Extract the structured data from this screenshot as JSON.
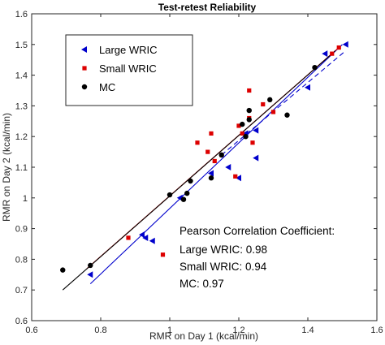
{
  "chart_data": {
    "type": "scatter",
    "title": "Test-retest Reliability",
    "xlabel": "RMR on Day 1 (kcal/min)",
    "ylabel": "RMR on Day 2 (kcal/min)",
    "xlim": [
      0.6,
      1.6
    ],
    "ylim": [
      0.6,
      1.6
    ],
    "xticks": [
      "0.6",
      "0.8",
      "1",
      "1.2",
      "1.4",
      "1.6"
    ],
    "yticks": [
      "0.6",
      "0.7",
      "0.8",
      "0.9",
      "1",
      "1.1",
      "1.2",
      "1.3",
      "1.4",
      "1.5",
      "1.6"
    ],
    "grid": false,
    "legend_position": "top-left",
    "series": [
      {
        "name": "Large WRIC",
        "color": "#0000cc",
        "marker": "triangle-left",
        "line_style": "solid",
        "fit": [
          [
            0.77,
            0.72
          ],
          [
            1.5,
            1.5
          ]
        ],
        "x": [
          0.77,
          0.92,
          0.93,
          0.95,
          1.03,
          1.12,
          1.17,
          1.2,
          1.22,
          1.25,
          1.25,
          1.4,
          1.45,
          1.51
        ],
        "y": [
          0.75,
          0.88,
          0.87,
          0.86,
          1.0,
          1.08,
          1.1,
          1.065,
          1.21,
          1.13,
          1.22,
          1.36,
          1.47,
          1.5
        ]
      },
      {
        "name": "Small WRIC",
        "color": "#dd0000",
        "marker": "square",
        "line_style": "solid",
        "fit": [
          [
            0.76,
            0.77
          ],
          [
            1.49,
            1.49
          ]
        ],
        "x": [
          0.88,
          0.98,
          1.08,
          1.11,
          1.12,
          1.13,
          1.15,
          1.19,
          1.2,
          1.21,
          1.23,
          1.23,
          1.24,
          1.27,
          1.3,
          1.47,
          1.49
        ],
        "y": [
          0.87,
          0.815,
          1.18,
          1.15,
          1.21,
          1.12,
          1.14,
          1.07,
          1.235,
          1.21,
          1.35,
          1.26,
          1.18,
          1.305,
          1.28,
          1.47,
          1.49
        ]
      },
      {
        "name": "MC",
        "color": "#000000",
        "marker": "circle",
        "line_style": "solid",
        "fit": [
          [
            0.69,
            0.7
          ],
          [
            1.48,
            1.48
          ]
        ],
        "x": [
          0.69,
          0.77,
          1.0,
          1.04,
          1.05,
          1.06,
          1.12,
          1.15,
          1.21,
          1.22,
          1.23,
          1.23,
          1.29,
          1.34,
          1.42
        ],
        "y": [
          0.765,
          0.78,
          1.01,
          0.995,
          1.015,
          1.055,
          1.065,
          1.14,
          1.24,
          1.2,
          1.255,
          1.285,
          1.32,
          1.27,
          1.425
        ]
      }
    ],
    "extra_lines": [
      {
        "color": "#0000cc",
        "line_style": "dashed",
        "points": [
          [
            1.15,
            1.14
          ],
          [
            1.51,
            1.48
          ]
        ]
      }
    ],
    "annotation": {
      "lines": [
        "Pearson Correlation Coefficient:",
        "Large WRIC: 0.98",
        "Small WRIC: 0.94",
        "MC: 0.97"
      ]
    }
  }
}
